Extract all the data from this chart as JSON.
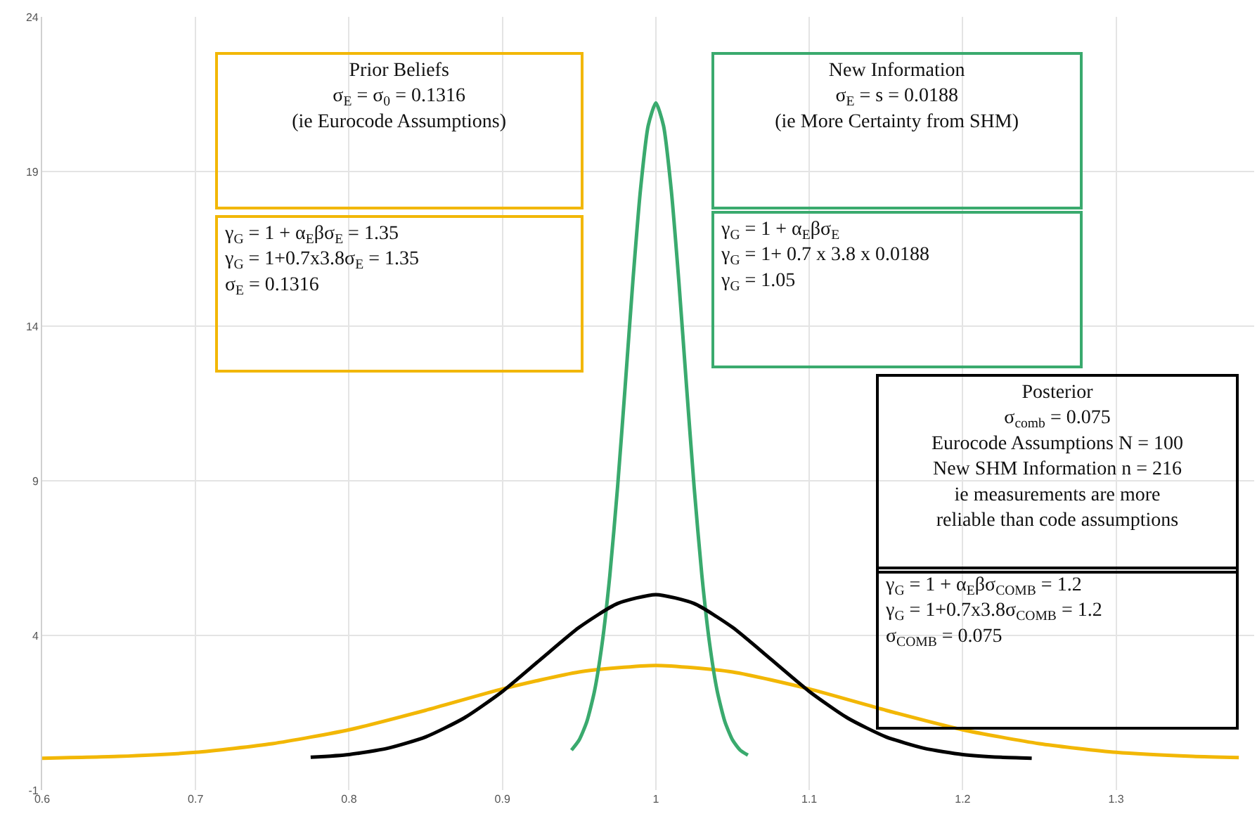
{
  "chart_data": {
    "type": "line",
    "series": [
      {
        "color": "#f2b705",
        "x": [
          0.6,
          0.65,
          0.7,
          0.75,
          0.8,
          0.85,
          0.9,
          0.95,
          1.0,
          1.05,
          1.1,
          1.15,
          1.2,
          1.25,
          1.3,
          1.35,
          1.38
        ],
        "values": [
          0.03,
          0.09,
          0.22,
          0.5,
          0.95,
          1.58,
          2.27,
          2.82,
          3.03,
          2.82,
          2.27,
          1.58,
          0.95,
          0.5,
          0.22,
          0.09,
          0.05
        ]
      },
      {
        "color": "#3aaa6e",
        "x": [
          0.945,
          0.95,
          0.955,
          0.96,
          0.965,
          0.97,
          0.975,
          0.98,
          0.985,
          0.99,
          0.995,
          1.0,
          1.005,
          1.01,
          1.015,
          1.02,
          1.025,
          1.03,
          1.035,
          1.04,
          1.045,
          1.05,
          1.055,
          1.06
        ],
        "values": [
          0.29,
          0.62,
          1.21,
          2.2,
          3.75,
          5.94,
          8.77,
          12.05,
          15.44,
          18.42,
          20.48,
          21.22,
          20.48,
          18.42,
          15.44,
          12.05,
          8.77,
          5.94,
          3.75,
          2.2,
          1.21,
          0.62,
          0.29,
          0.13
        ]
      },
      {
        "color": "#000000",
        "x": [
          0.775,
          0.8,
          0.825,
          0.85,
          0.875,
          0.9,
          0.925,
          0.95,
          0.975,
          1.0,
          1.025,
          1.05,
          1.075,
          1.1,
          1.125,
          1.15,
          1.175,
          1.2,
          1.225,
          1.245
        ],
        "values": [
          0.06,
          0.15,
          0.35,
          0.72,
          1.33,
          2.19,
          3.23,
          4.26,
          5.03,
          5.32,
          5.03,
          4.26,
          3.23,
          2.19,
          1.33,
          0.72,
          0.35,
          0.15,
          0.06,
          0.03
        ]
      }
    ],
    "xlim": [
      0.6,
      1.39
    ],
    "xticks": [
      0.6,
      0.7,
      0.8,
      0.9,
      1,
      1.1,
      1.2,
      1.3
    ],
    "ylim": [
      -1,
      24
    ],
    "yticks": [
      -1,
      4,
      9,
      14,
      19,
      24
    ],
    "grid": true,
    "marker": "none",
    "line_style": "solid",
    "annotations": [
      "Prior Beliefs\nσ$_{E}$ = σ$_{0}$ = 0.1316\n(ie Eurocode Assumptions)",
      "γ$_{G}$ = 1 + α$_{E}$βσ$_{E}$ = 1.35\nγ$_{G}$ = 1+0.7x3.8σ$_{E}$ = 1.35\nσ$_{E}$ = 0.1316",
      "New Information\nσ$_{E}$ = s = 0.0188\n(ie More Certainty from SHM)",
      "γ$_{G}$ = 1 + α$_{E}$βσ$_{E}$\nγ$_{G}$ = 1+ 0.7 x 3.8 x 0.0188\nγ$_{G}$ = 1.05",
      "Posterior\nσ$_{comb}$ = 0.075\nEurocode Assumptions N = 100\nNew SHM Information n = 216\nie measurements are more\nreliable than code assumptions",
      "γ$_{G}$ = 1 + α$_{E}$βσ$_{COMB}$ = 1.2\nγ$_{G}$ = 1+0.7x3.8σ$_{COMB}$ = 1.2\nσ$_{COMB}$ = 0.075"
    ]
  }
}
